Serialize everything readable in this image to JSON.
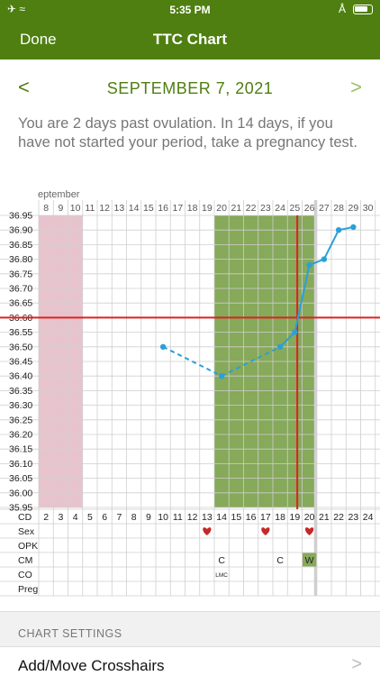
{
  "status_bar": {
    "time": "5:35 PM",
    "left_icons": [
      "airplane-icon",
      "wifi-icon"
    ],
    "right_icons": [
      "bluetooth-icon",
      "battery-icon"
    ]
  },
  "nav": {
    "done_label": "Done",
    "title": "TTC Chart"
  },
  "date_nav": {
    "prev_label": "<",
    "date": "SEPTEMBER 7, 2021",
    "next_label": ">"
  },
  "message": "You are 2 days past ovulation. In 14 days, if you have not started your period, take a pregnancy test.",
  "colors": {
    "brand": "#4e7f10",
    "period": "#e7c4cd",
    "fertile": "#86a95a",
    "line": "#2aa0d8",
    "crosshair": "#e02020",
    "heart": "#c62828"
  },
  "chart_data": {
    "type": "line",
    "month_label": "eptember",
    "dates": [
      "8",
      "9",
      "10",
      "11",
      "12",
      "13",
      "14",
      "15",
      "16",
      "17",
      "18",
      "19",
      "20",
      "21",
      "22",
      "23",
      "24",
      "25",
      "26",
      "27",
      "28",
      "29",
      "30"
    ],
    "cycle_days": [
      "2",
      "3",
      "4",
      "5",
      "6",
      "7",
      "8",
      "9",
      "10",
      "11",
      "12",
      "13",
      "14",
      "15",
      "16",
      "17",
      "18",
      "19",
      "20",
      "21",
      "22",
      "23",
      "24"
    ],
    "y_ticks": [
      "36.95",
      "36.90",
      "36.85",
      "36.80",
      "36.75",
      "36.70",
      "36.65",
      "36.60",
      "36.55",
      "36.50",
      "36.45",
      "36.40",
      "36.35",
      "36.30",
      "36.25",
      "36.20",
      "36.15",
      "36.10",
      "36.05",
      "36.00",
      "35.95"
    ],
    "ylim": [
      35.95,
      36.95
    ],
    "temps": [
      {
        "cd": 10,
        "temp": 36.5
      },
      {
        "cd": 14,
        "temp": 36.4
      },
      {
        "cd": 18,
        "temp": 36.5
      },
      {
        "cd": 19,
        "temp": 36.55
      },
      {
        "cd": 20,
        "temp": 36.78
      },
      {
        "cd": 21,
        "temp": 36.8
      },
      {
        "cd": 22,
        "temp": 36.9
      },
      {
        "cd": 23,
        "temp": 36.91
      }
    ],
    "period_days": [
      2,
      3,
      4
    ],
    "fertile_window": [
      14,
      20
    ],
    "coverline": 36.6,
    "ovulation_cd": 19,
    "today_cd": 21,
    "row_labels": [
      "CD",
      "Sex",
      "OPK",
      "CM",
      "CO",
      "Preg"
    ],
    "sex_days": [
      13,
      17,
      20
    ],
    "cm_entries": [
      {
        "cd": 14,
        "value": "C"
      },
      {
        "cd": 18,
        "value": "C"
      },
      {
        "cd": 20,
        "value": "W"
      }
    ],
    "co_entries": [
      {
        "cd": 14,
        "value": "LMC"
      }
    ]
  },
  "settings": {
    "section_header": "CHART SETTINGS",
    "row_label": "Add/Move Crosshairs",
    "row_chevron": ">"
  }
}
